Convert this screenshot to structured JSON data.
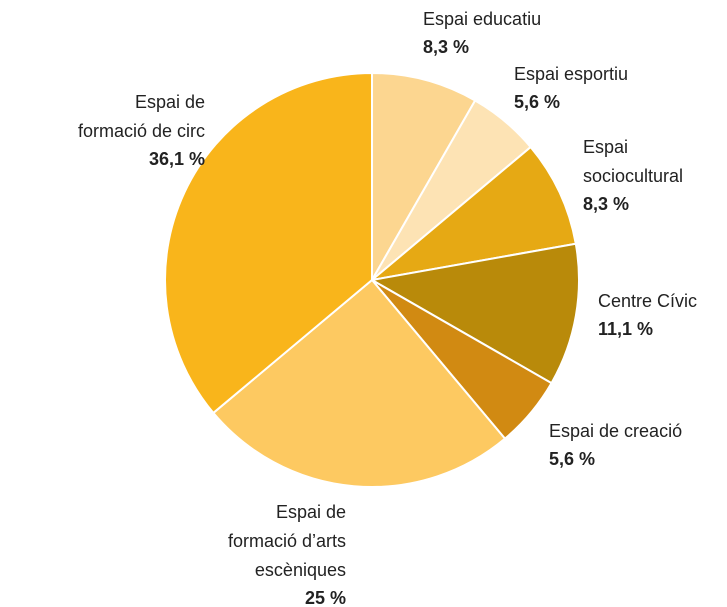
{
  "chart_data": {
    "type": "pie",
    "categories": [
      [
        "Espai educatiu"
      ],
      [
        "Espai esportiu"
      ],
      [
        "Espai",
        "sociocultural"
      ],
      [
        "Centre Cívic"
      ],
      [
        "Espai de creació"
      ],
      [
        "Espai de",
        "formació d’arts",
        "escèniques"
      ],
      [
        "Espai de",
        "formació de circ"
      ]
    ],
    "values": [
      8.3,
      5.6,
      8.3,
      11.1,
      5.6,
      25,
      36.1
    ],
    "value_labels": [
      "8,3 %",
      "5,6 %",
      "8,3 %",
      "11,1 %",
      "5,6 %",
      "25 %",
      "36,1 %"
    ],
    "colors": [
      "#fcd690",
      "#fde3b4",
      "#e6a914",
      "#b98a0a",
      "#d18a12",
      "#fdc961",
      "#f9b51b"
    ]
  }
}
